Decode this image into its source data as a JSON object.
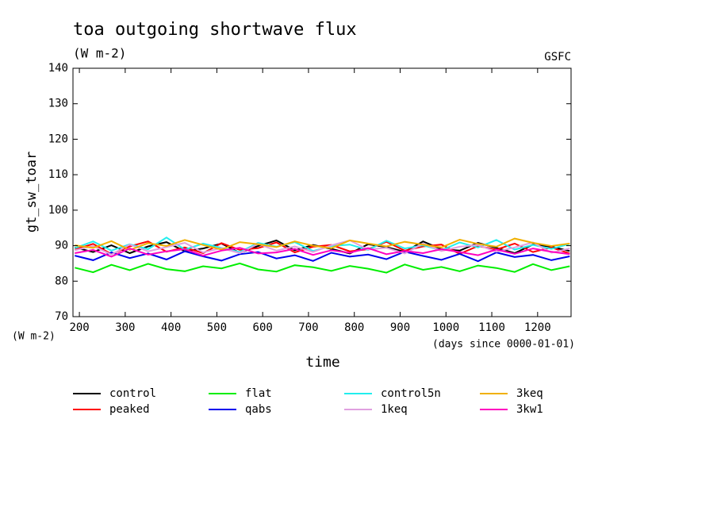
{
  "chart_data": {
    "type": "line",
    "title": "toa outgoing shortwave flux",
    "subtitle": "(W m-2)",
    "source": "GSFC",
    "ylabel": "gt_sw_toar",
    "y_unit": "(W m-2)",
    "xlabel": "time",
    "x_unit": "(days since 0000-01-01)",
    "xlim": [
      186,
      1273
    ],
    "ylim": [
      70,
      140
    ],
    "xticks": [
      200,
      300,
      400,
      500,
      600,
      700,
      800,
      900,
      1000,
      1100,
      1200
    ],
    "yticks": [
      70,
      80,
      90,
      100,
      110,
      120,
      130,
      140
    ],
    "x": [
      190,
      230,
      270,
      310,
      350,
      390,
      430,
      470,
      510,
      550,
      590,
      630,
      670,
      710,
      750,
      790,
      830,
      870,
      910,
      950,
      990,
      1030,
      1070,
      1110,
      1150,
      1190,
      1230,
      1270
    ],
    "series": [
      {
        "name": "control",
        "color": "#000000",
        "values": [
          89.5,
          88.2,
          90.1,
          87.9,
          89.8,
          91.0,
          88.4,
          89.2,
          90.6,
          88.0,
          89.9,
          91.5,
          88.7,
          90.2,
          89.1,
          87.8,
          90.4,
          89.6,
          88.3,
          91.2,
          89.0,
          88.6,
          90.8,
          89.4,
          87.9,
          90.3,
          89.7,
          88.5
        ]
      },
      {
        "name": "peaked",
        "color": "#ff0000",
        "values": [
          88.9,
          90.5,
          87.6,
          89.8,
          91.2,
          88.3,
          89.5,
          87.9,
          90.7,
          88.8,
          89.3,
          90.9,
          88.1,
          89.7,
          90.2,
          88.4,
          89.0,
          91.1,
          88.6,
          89.8,
          90.3,
          87.7,
          89.9,
          88.9,
          90.6,
          88.2,
          89.5,
          87.8
        ]
      },
      {
        "name": "flat",
        "color": "#00ee00",
        "values": [
          83.8,
          82.5,
          84.6,
          83.1,
          84.9,
          83.4,
          82.8,
          84.2,
          83.6,
          85.0,
          83.3,
          82.7,
          84.5,
          83.9,
          82.9,
          84.3,
          83.5,
          82.4,
          84.7,
          83.2,
          84.0,
          82.8,
          84.4,
          83.7,
          82.6,
          84.8,
          83.1,
          84.2
        ]
      },
      {
        "name": "qabs",
        "color": "#0000ee",
        "values": [
          87.2,
          85.9,
          88.1,
          86.5,
          87.8,
          86.1,
          88.4,
          87.0,
          85.8,
          87.6,
          88.2,
          86.4,
          87.3,
          85.7,
          88.0,
          86.9,
          87.5,
          86.2,
          88.3,
          87.1,
          86.0,
          87.7,
          85.6,
          88.1,
          86.8,
          87.4,
          85.9,
          87.0
        ]
      },
      {
        "name": "control5n",
        "color": "#22eeee",
        "values": [
          89.3,
          91.2,
          88.6,
          90.4,
          89.0,
          92.3,
          88.9,
          90.6,
          89.4,
          88.2,
          90.8,
          89.7,
          91.0,
          88.5,
          89.9,
          90.3,
          88.8,
          91.4,
          89.2,
          90.1,
          88.7,
          90.9,
          89.5,
          91.6,
          88.9,
          90.2,
          89.1,
          90.5
        ]
      },
      {
        "name": "1keq",
        "color": "#e0a0e0",
        "values": [
          88.7,
          89.9,
          87.5,
          90.3,
          88.4,
          89.6,
          90.8,
          88.1,
          89.3,
          87.9,
          90.5,
          88.6,
          89.8,
          88.2,
          90.1,
          91.5,
          88.9,
          89.4,
          87.8,
          90.6,
          88.5,
          89.7,
          90.2,
          88.3,
          89.5,
          90.9,
          88.0,
          89.2
        ]
      },
      {
        "name": "3keq",
        "color": "#f0b000",
        "values": [
          90.1,
          89.4,
          91.3,
          88.8,
          90.7,
          89.9,
          91.6,
          90.2,
          88.9,
          91.0,
          90.4,
          89.6,
          91.2,
          90.0,
          89.3,
          91.5,
          90.6,
          89.8,
          91.1,
          90.3,
          89.5,
          91.7,
          90.5,
          89.7,
          92.0,
          90.8,
          89.9,
          90.6
        ]
      },
      {
        "name": "3kw1",
        "color": "#ff00c0",
        "values": [
          87.9,
          88.8,
          86.9,
          89.2,
          87.5,
          88.4,
          89.0,
          87.2,
          88.6,
          89.4,
          87.8,
          88.1,
          89.1,
          87.4,
          88.7,
          88.0,
          89.3,
          87.6,
          88.5,
          87.9,
          89.0,
          88.2,
          87.3,
          88.9,
          87.7,
          89.2,
          88.3,
          87.6
        ]
      }
    ]
  }
}
